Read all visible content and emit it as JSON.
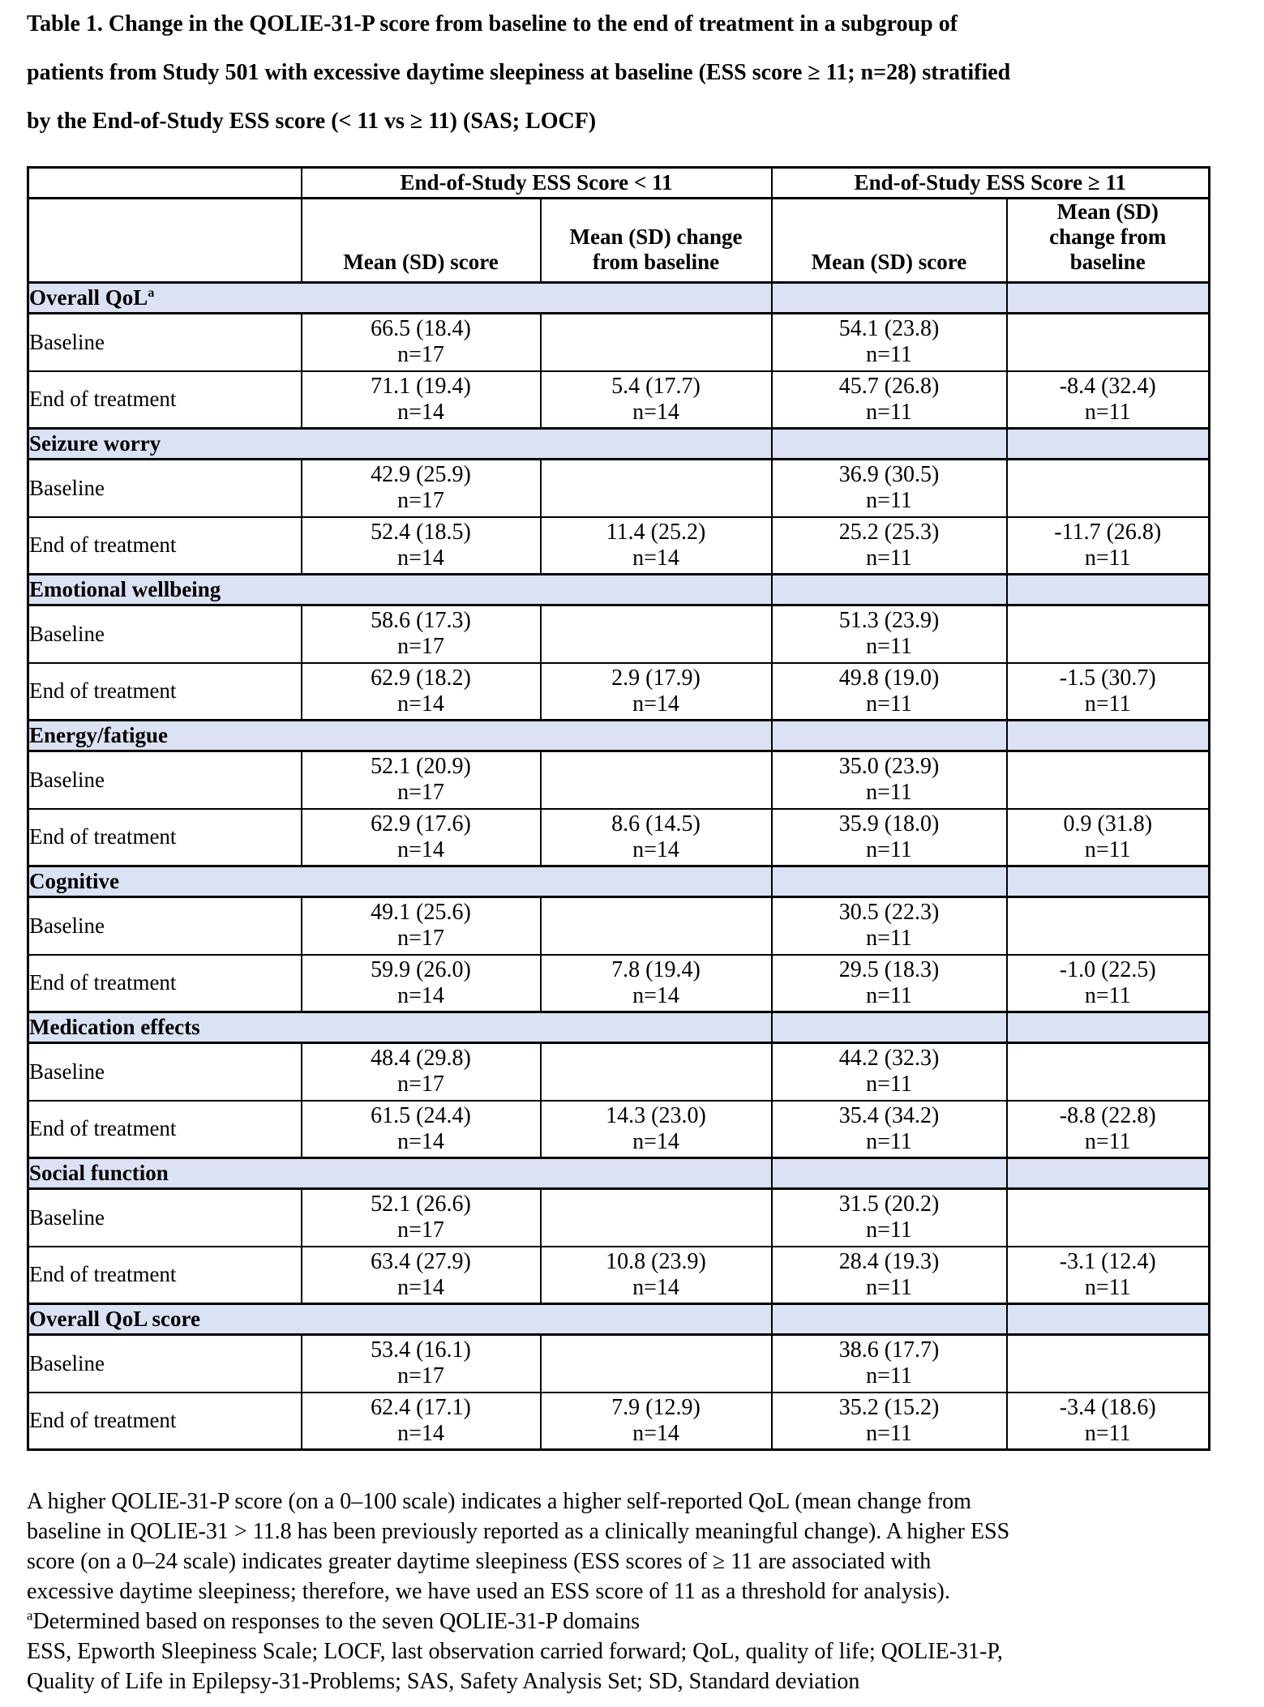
{
  "caption": "Table 1. Change in the QOLIE-31-P score from baseline to the end of treatment in a subgroup of\npatients from Study 501 with excessive daytime sleepiness at baseline (ESS score ≥ 11; n=28) stratified\nby the End-of-Study ESS score (< 11 vs ≥ 11) (SAS; LOCF)",
  "table": {
    "group_headers": [
      "End-of-Study ESS Score < 11",
      "End-of-Study ESS Score ≥ 11"
    ],
    "col_headers": [
      "Mean (SD) score",
      "Mean (SD) change\nfrom baseline",
      "Mean (SD) score",
      "Mean (SD)\nchange from\nbaseline"
    ],
    "sections": [
      {
        "label": "Overall QoL",
        "sup": "a",
        "rows": [
          {
            "label": "Baseline",
            "cells": [
              [
                "66.5 (18.4)",
                "n=17"
              ],
              [
                "",
                ""
              ],
              [
                "54.1 (23.8)",
                "n=11"
              ],
              [
                "",
                ""
              ]
            ]
          },
          {
            "label": "End of treatment",
            "cells": [
              [
                "71.1 (19.4)",
                "n=14"
              ],
              [
                "5.4 (17.7)",
                "n=14"
              ],
              [
                "45.7 (26.8)",
                "n=11"
              ],
              [
                "-8.4 (32.4)",
                "n=11"
              ]
            ]
          }
        ]
      },
      {
        "label": "Seizure worry",
        "rows": [
          {
            "label": "Baseline",
            "cells": [
              [
                "42.9 (25.9)",
                "n=17"
              ],
              [
                "",
                ""
              ],
              [
                "36.9 (30.5)",
                "n=11"
              ],
              [
                "",
                ""
              ]
            ]
          },
          {
            "label": "End of treatment",
            "cells": [
              [
                "52.4 (18.5)",
                "n=14"
              ],
              [
                "11.4 (25.2)",
                "n=14"
              ],
              [
                "25.2 (25.3)",
                "n=11"
              ],
              [
                "-11.7 (26.8)",
                "n=11"
              ]
            ]
          }
        ]
      },
      {
        "label": "Emotional wellbeing",
        "rows": [
          {
            "label": "Baseline",
            "cells": [
              [
                "58.6 (17.3)",
                "n=17"
              ],
              [
                "",
                ""
              ],
              [
                "51.3 (23.9)",
                "n=11"
              ],
              [
                "",
                ""
              ]
            ]
          },
          {
            "label": "End of treatment",
            "cells": [
              [
                "62.9 (18.2)",
                "n=14"
              ],
              [
                "2.9 (17.9)",
                "n=14"
              ],
              [
                "49.8 (19.0)",
                "n=11"
              ],
              [
                "-1.5 (30.7)",
                "n=11"
              ]
            ]
          }
        ]
      },
      {
        "label": "Energy/fatigue",
        "rows": [
          {
            "label": "Baseline",
            "cells": [
              [
                "52.1 (20.9)",
                "n=17"
              ],
              [
                "",
                ""
              ],
              [
                "35.0 (23.9)",
                "n=11"
              ],
              [
                "",
                ""
              ]
            ]
          },
          {
            "label": "End of treatment",
            "cells": [
              [
                "62.9 (17.6)",
                "n=14"
              ],
              [
                "8.6 (14.5)",
                "n=14"
              ],
              [
                "35.9 (18.0)",
                "n=11"
              ],
              [
                "0.9 (31.8)",
                "n=11"
              ]
            ]
          }
        ]
      },
      {
        "label": "Cognitive",
        "rows": [
          {
            "label": "Baseline",
            "cells": [
              [
                "49.1 (25.6)",
                "n=17"
              ],
              [
                "",
                ""
              ],
              [
                "30.5 (22.3)",
                "n=11"
              ],
              [
                "",
                ""
              ]
            ]
          },
          {
            "label": "End of treatment",
            "cells": [
              [
                "59.9 (26.0)",
                "n=14"
              ],
              [
                "7.8 (19.4)",
                "n=14"
              ],
              [
                "29.5 (18.3)",
                "n=11"
              ],
              [
                "-1.0 (22.5)",
                "n=11"
              ]
            ]
          }
        ]
      },
      {
        "label": "Medication effects",
        "rows": [
          {
            "label": "Baseline",
            "cells": [
              [
                "48.4 (29.8)",
                "n=17"
              ],
              [
                "",
                ""
              ],
              [
                "44.2 (32.3)",
                "n=11"
              ],
              [
                "",
                ""
              ]
            ]
          },
          {
            "label": "End of treatment",
            "cells": [
              [
                "61.5 (24.4)",
                "n=14"
              ],
              [
                "14.3 (23.0)",
                "n=14"
              ],
              [
                "35.4 (34.2)",
                "n=11"
              ],
              [
                "-8.8 (22.8)",
                "n=11"
              ]
            ]
          }
        ]
      },
      {
        "label": "Social function",
        "rows": [
          {
            "label": "Baseline",
            "cells": [
              [
                "52.1 (26.6)",
                "n=17"
              ],
              [
                "",
                ""
              ],
              [
                "31.5 (20.2)",
                "n=11"
              ],
              [
                "",
                ""
              ]
            ]
          },
          {
            "label": "End of treatment",
            "cells": [
              [
                "63.4 (27.9)",
                "n=14"
              ],
              [
                "10.8 (23.9)",
                "n=14"
              ],
              [
                "28.4 (19.3)",
                "n=11"
              ],
              [
                "-3.1 (12.4)",
                "n=11"
              ]
            ]
          }
        ]
      },
      {
        "label": "Overall QoL score",
        "rows": [
          {
            "label": "Baseline",
            "cells": [
              [
                "53.4 (16.1)",
                "n=17"
              ],
              [
                "",
                ""
              ],
              [
                "38.6 (17.7)",
                "n=11"
              ],
              [
                "",
                ""
              ]
            ]
          },
          {
            "label": "End of treatment",
            "cells": [
              [
                "62.4 (17.1)",
                "n=14"
              ],
              [
                "7.9 (12.9)",
                "n=14"
              ],
              [
                "35.2 (15.2)",
                "n=11"
              ],
              [
                "-3.4 (18.6)",
                "n=11"
              ]
            ]
          }
        ]
      }
    ]
  },
  "footnotes": {
    "paragraph": "A higher QOLIE-31-P score (on a 0–100 scale) indicates a higher self-reported QoL (mean change from\nbaseline in QOLIE-31 > 11.8 has been previously reported as a clinically meaningful change). A higher ESS\nscore (on a 0–24 scale) indicates greater daytime sleepiness (ESS scores of ≥ 11 are associated with\nexcessive daytime sleepiness; therefore, we have used an ESS score of 11 as a threshold for analysis).",
    "note_a_sup": "a",
    "note_a_text": "Determined based on responses to the seven QOLIE-31-P domains",
    "abbreviations": "ESS, Epworth Sleepiness Scale; LOCF, last observation carried forward; QoL, quality of life; QOLIE-31-P,\nQuality of Life in Epilepsy-31-Problems; SAS, Safety Analysis Set; SD, Standard deviation"
  },
  "colors": {
    "section_row_bg": "#dae2f3",
    "border": "#000000",
    "page_bg": "#ffffff"
  }
}
